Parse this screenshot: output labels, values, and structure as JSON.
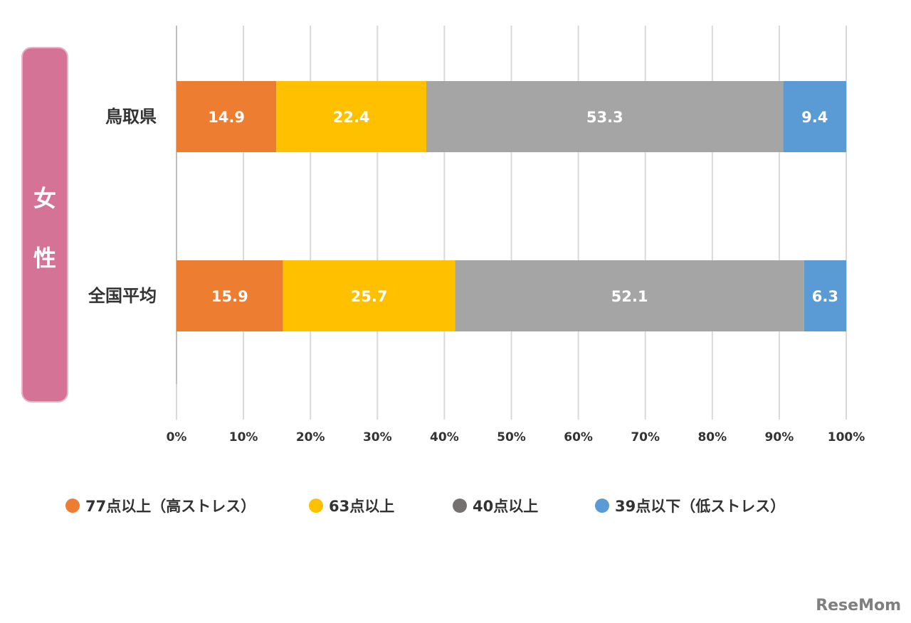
{
  "gender_label": [
    "女",
    "性"
  ],
  "colors": {
    "gender_box": "#d47396",
    "grid": "#d9d9d9"
  },
  "chart_data": {
    "type": "bar",
    "orientation": "horizontal",
    "stacked": true,
    "percent": true,
    "categories": [
      "鳥取県",
      "全国平均"
    ],
    "series": [
      {
        "name": "77点以上（高ストレス）",
        "color": "#ed7d31",
        "values": [
          14.9,
          15.9
        ]
      },
      {
        "name": "63点以上",
        "color": "#ffc000",
        "values": [
          22.4,
          25.7
        ]
      },
      {
        "name": "40点以上",
        "color": "#a5a5a5",
        "legend_color": "#767171",
        "values": [
          53.3,
          52.1
        ]
      },
      {
        "name": "39点以下（低ストレス）",
        "color": "#5b9bd5",
        "values": [
          9.4,
          6.3
        ]
      }
    ],
    "xlim": [
      0,
      100
    ],
    "xticks": [
      "0%",
      "10%",
      "20%",
      "30%",
      "40%",
      "50%",
      "60%",
      "70%",
      "80%",
      "90%",
      "100%"
    ],
    "grid": true,
    "legend_position": "bottom"
  },
  "logo_text": "ReseMom"
}
